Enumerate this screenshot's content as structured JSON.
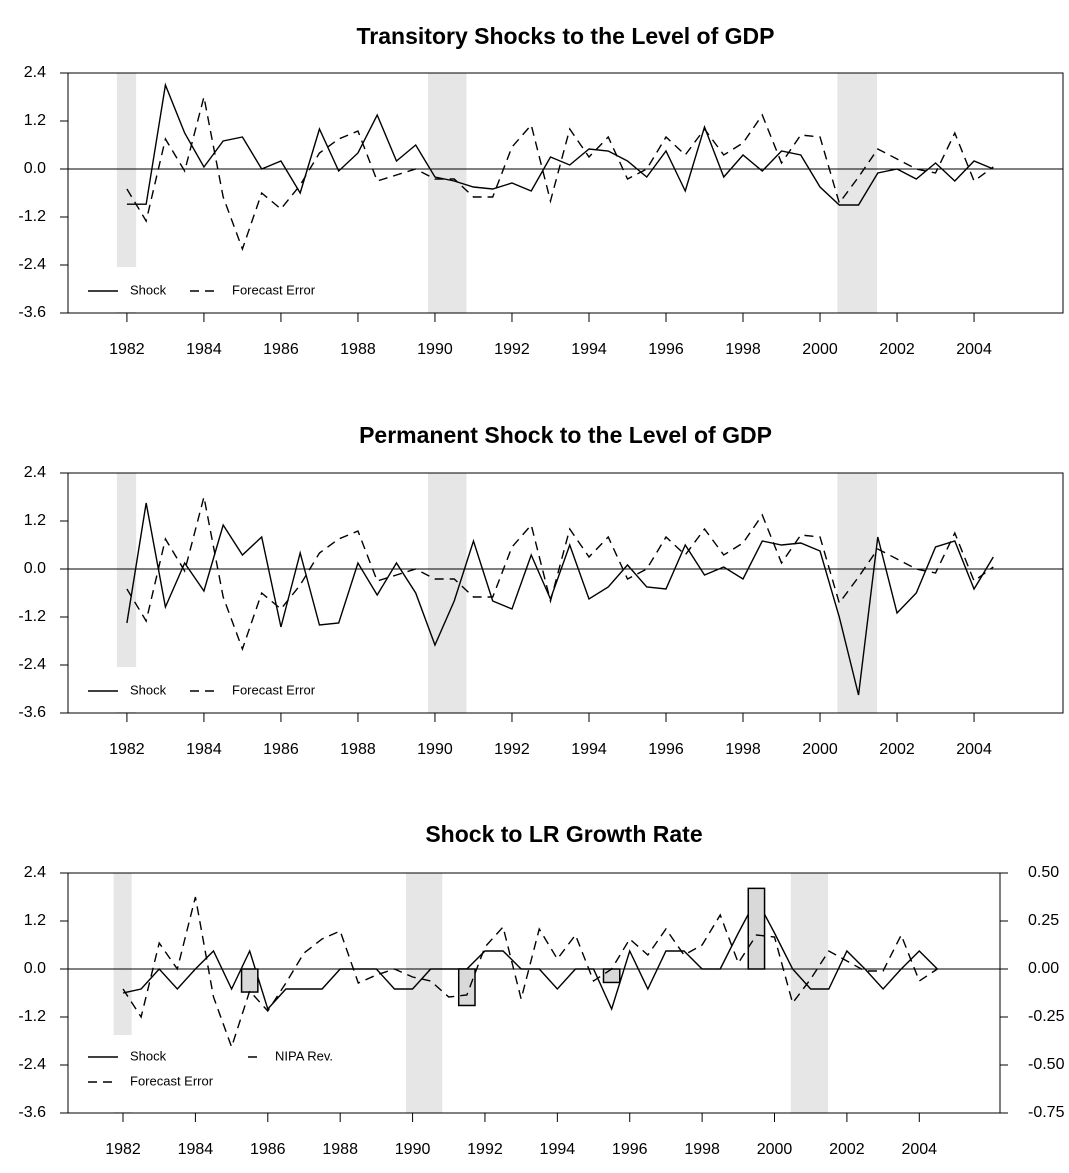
{
  "chart_data": [
    {
      "type": "line",
      "title": "Transitory Shocks to the Level of GDP",
      "x": [
        1982,
        1982.5,
        1983,
        1983.5,
        1984,
        1984.5,
        1985,
        1985.5,
        1986,
        1986.5,
        1987,
        1987.5,
        1988,
        1988.5,
        1989,
        1989.5,
        1990,
        1990.5,
        1991,
        1991.5,
        1992,
        1992.5,
        1993,
        1993.5,
        1994,
        1994.5,
        1995,
        1995.5,
        1996,
        1996.5,
        1997,
        1997.5,
        1998,
        1998.5,
        1999,
        1999.5,
        2000,
        2000.5,
        2001,
        2001.5,
        2002,
        2002.5,
        2003,
        2003.5,
        2004,
        2004.5
      ],
      "series": [
        {
          "name": "Shock",
          "color": "#000000",
          "line_style": "solid",
          "values": [
            -0.88,
            -0.88,
            2.1,
            0.9,
            0.05,
            0.7,
            0.8,
            0.0,
            0.2,
            -0.6,
            1.0,
            -0.05,
            0.4,
            1.35,
            0.2,
            0.6,
            -0.2,
            -0.3,
            -0.45,
            -0.5,
            -0.35,
            -0.55,
            0.3,
            0.1,
            0.5,
            0.45,
            0.2,
            -0.2,
            0.45,
            -0.55,
            1.05,
            -0.2,
            0.35,
            -0.05,
            0.45,
            0.35,
            -0.45,
            -0.9,
            -0.9,
            -0.1,
            0.0,
            -0.25,
            0.15,
            -0.3,
            0.2,
            0.0
          ]
        },
        {
          "name": "Forecast Error",
          "color": "#000000",
          "line_style": "dashed",
          "values": [
            -0.5,
            -1.3,
            0.75,
            -0.05,
            1.8,
            -0.7,
            -2.0,
            -0.6,
            -1.0,
            -0.4,
            0.4,
            0.75,
            0.95,
            -0.3,
            -0.15,
            0.0,
            -0.25,
            -0.25,
            -0.7,
            -0.7,
            0.55,
            1.1,
            -0.8,
            1.0,
            0.3,
            0.8,
            -0.25,
            0.0,
            0.8,
            0.35,
            1.0,
            0.35,
            0.65,
            1.35,
            0.15,
            0.85,
            0.8,
            -0.85,
            -0.2,
            0.5,
            0.25,
            0.0,
            -0.1,
            0.9,
            -0.3,
            0.05
          ]
        }
      ],
      "shaded": [
        [
          1981.74,
          1982.24
        ],
        [
          1989.82,
          1990.82
        ],
        [
          2000.45,
          2001.48
        ]
      ],
      "xlim": [
        1980.47,
        2006.31
      ],
      "xticks": [
        1982,
        1984,
        1986,
        1988,
        1990,
        1992,
        1994,
        1996,
        1998,
        2000,
        2002,
        2004
      ],
      "ylim": [
        -3.6,
        2.4
      ],
      "yticks": [
        2.4,
        1.2,
        {
          "value": 0,
          "label": "0.0"
        },
        -1.2,
        -2.4,
        -3.6
      ],
      "legend": "lower left"
    },
    {
      "type": "line",
      "title": "Permanent Shock to the Level of GDP",
      "x": [
        1982,
        1982.5,
        1983,
        1983.5,
        1984,
        1984.5,
        1985,
        1985.5,
        1986,
        1986.5,
        1987,
        1987.5,
        1988,
        1988.5,
        1989,
        1989.5,
        1990,
        1990.5,
        1991,
        1991.5,
        1992,
        1992.5,
        1993,
        1993.5,
        1994,
        1994.5,
        1995,
        1995.5,
        1996,
        1996.5,
        1997,
        1997.5,
        1998,
        1998.5,
        1999,
        1999.5,
        2000,
        2000.5,
        2001,
        2001.5,
        2002,
        2002.5,
        2003,
        2003.5,
        2004,
        2004.5
      ],
      "series": [
        {
          "name": "Shock",
          "color": "#000000",
          "line_style": "solid",
          "values": [
            -1.35,
            1.65,
            -0.95,
            0.15,
            -0.55,
            1.1,
            0.35,
            0.8,
            -1.45,
            0.4,
            -1.4,
            -1.35,
            0.15,
            -0.65,
            0.15,
            -0.6,
            -1.9,
            -0.8,
            0.7,
            -0.8,
            -1.0,
            0.35,
            -0.75,
            0.6,
            -0.75,
            -0.45,
            0.1,
            -0.45,
            -0.5,
            0.6,
            -0.15,
            0.05,
            -0.25,
            0.7,
            0.6,
            0.65,
            0.45,
            -1.2,
            -3.15,
            0.8,
            -1.1,
            -0.6,
            0.55,
            0.7,
            -0.5,
            0.3
          ]
        },
        {
          "name": "Forecast Error",
          "color": "#000000",
          "line_style": "dashed",
          "values": [
            -0.5,
            -1.3,
            0.75,
            -0.05,
            1.8,
            -0.7,
            -2.0,
            -0.6,
            -1.0,
            -0.4,
            0.4,
            0.75,
            0.95,
            -0.3,
            -0.15,
            0.0,
            -0.25,
            -0.25,
            -0.7,
            -0.7,
            0.55,
            1.1,
            -0.8,
            1.0,
            0.3,
            0.8,
            -0.25,
            0.0,
            0.8,
            0.35,
            1.0,
            0.35,
            0.65,
            1.35,
            0.15,
            0.85,
            0.8,
            -0.85,
            -0.2,
            0.5,
            0.25,
            0.0,
            -0.1,
            0.9,
            -0.3,
            0.05
          ]
        }
      ],
      "shaded": [
        [
          1981.74,
          1982.24
        ],
        [
          1989.82,
          1990.82
        ],
        [
          2000.45,
          2001.48
        ]
      ],
      "xlim": [
        1980.47,
        2006.31
      ],
      "xticks": [
        1982,
        1984,
        1986,
        1988,
        1990,
        1992,
        1994,
        1996,
        1998,
        2000,
        2002,
        2004
      ],
      "ylim": [
        -3.6,
        2.4
      ],
      "yticks": [
        2.4,
        1.2,
        {
          "value": 0,
          "label": "0.0"
        },
        -1.2,
        -2.4,
        -3.6
      ],
      "legend": "lower left"
    },
    {
      "type": "line",
      "title": "Shock to LR Growth Rate",
      "x": [
        1982,
        1982.5,
        1983,
        1983.5,
        1984,
        1984.5,
        1985,
        1985.5,
        1986,
        1986.5,
        1987,
        1987.5,
        1988,
        1988.5,
        1989,
        1989.5,
        1990,
        1990.5,
        1991,
        1991.5,
        1992,
        1992.5,
        1993,
        1993.5,
        1994,
        1994.5,
        1995,
        1995.5,
        1996,
        1996.5,
        1997,
        1997.5,
        1998,
        1998.5,
        1999,
        1999.5,
        2000,
        2000.5,
        2001,
        2001.5,
        2002,
        2002.5,
        2003,
        2003.5,
        2004,
        2004.5
      ],
      "series": [
        {
          "name": "Shock",
          "color": "#000000",
          "line_style": "solid",
          "values": [
            -0.6,
            -0.5,
            0.0,
            -0.5,
            0.0,
            0.45,
            -0.5,
            0.45,
            -1.0,
            -0.5,
            -0.5,
            -0.5,
            0.0,
            0.0,
            0.0,
            -0.5,
            -0.5,
            0.0,
            0.0,
            0.0,
            0.45,
            0.45,
            0.0,
            0.0,
            -0.5,
            0.0,
            0.0,
            -1.0,
            0.45,
            -0.5,
            0.45,
            0.45,
            0.0,
            0.0,
            0.9,
            1.75,
            0.9,
            0.0,
            -0.5,
            -0.5,
            0.45,
            0.0,
            -0.5,
            0.0,
            0.45,
            0.0
          ]
        },
        {
          "name": "NIPA Rev.",
          "color": "#d9d9d9",
          "line_style": "bar",
          "axis": "y2",
          "x": [
            1985.5,
            1991.5,
            1995.5,
            1999.5
          ],
          "values": [
            -0.12,
            -0.19,
            -0.07,
            0.42
          ]
        },
        {
          "name": "Forecast Error",
          "color": "#000000",
          "line_style": "dashed",
          "values": [
            -0.5,
            -1.2,
            0.65,
            0.0,
            1.8,
            -0.7,
            -1.95,
            -0.55,
            -1.05,
            -0.35,
            0.4,
            0.75,
            0.95,
            -0.35,
            -0.15,
            0.0,
            -0.2,
            -0.3,
            -0.7,
            -0.65,
            0.55,
            1.05,
            -0.75,
            1.0,
            0.25,
            0.85,
            -0.3,
            0.0,
            0.75,
            0.35,
            1.0,
            0.35,
            0.6,
            1.35,
            0.15,
            0.85,
            0.8,
            -0.85,
            -0.25,
            0.45,
            0.2,
            -0.05,
            -0.05,
            0.85,
            -0.3,
            0.0
          ]
        }
      ],
      "shaded": [
        [
          1981.74,
          1982.24
        ],
        [
          1989.82,
          1990.82
        ],
        [
          2000.45,
          2001.48
        ]
      ],
      "xlim": [
        1980.48,
        2006.23
      ],
      "xticks": [
        1982,
        1984,
        1986,
        1988,
        1990,
        1992,
        1994,
        1996,
        1998,
        2000,
        2002,
        2004
      ],
      "ylim": [
        -3.6,
        2.4
      ],
      "yticks": [
        2.4,
        1.2,
        {
          "value": 0,
          "label": "0.0"
        },
        -1.2,
        -2.4,
        -3.6
      ],
      "y2lim": [
        -0.75,
        0.5
      ],
      "y2ticks": [
        {
          "value": 0.5,
          "label": "0.50"
        },
        0.25,
        {
          "value": 0,
          "label": "0.00"
        },
        -0.25,
        {
          "value": -0.5,
          "label": "-0.50"
        },
        -0.75
      ],
      "legend": "lower left"
    }
  ]
}
